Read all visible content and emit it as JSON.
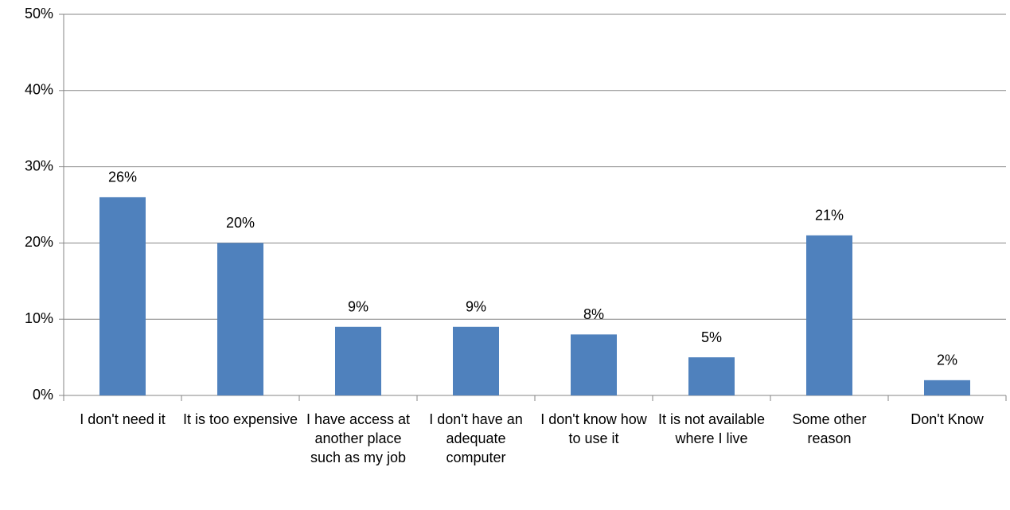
{
  "chart_data": {
    "type": "bar",
    "categories": [
      "I don't need it",
      "It is too expensive",
      "I have access at another place such as my job",
      "I don't have an adequate computer",
      "I don't know how to use it",
      "It is not available where I live",
      "Some other reason",
      "Don't Know"
    ],
    "values": [
      26,
      20,
      9,
      9,
      8,
      5,
      21,
      2
    ],
    "value_labels": [
      "26%",
      "20%",
      "9%",
      "9%",
      "8%",
      "5%",
      "21%",
      "2%"
    ],
    "color": "#4f81bd",
    "ylim": [
      0,
      50
    ],
    "yticks": [
      {
        "value": 0,
        "label": "0%"
      },
      {
        "value": 10,
        "label": "10%"
      },
      {
        "value": 20,
        "label": "20%"
      },
      {
        "value": 30,
        "label": "30%"
      },
      {
        "value": 40,
        "label": "40%"
      },
      {
        "value": 50,
        "label": "50%"
      }
    ],
    "grid": true
  }
}
